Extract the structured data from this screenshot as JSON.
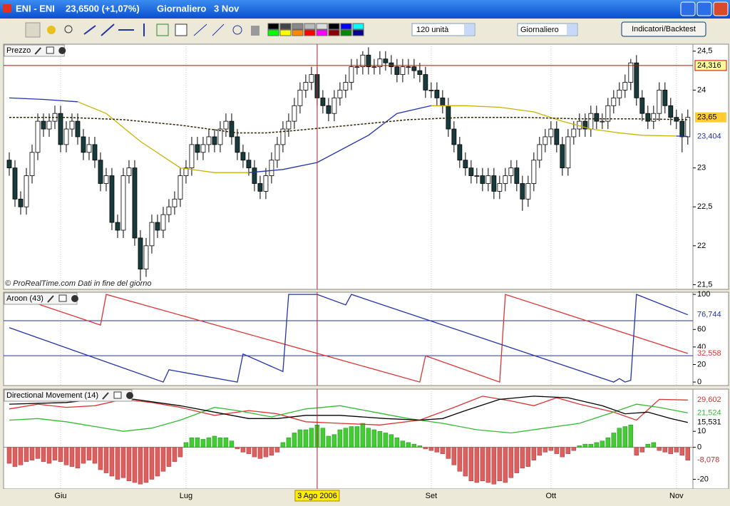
{
  "window": {
    "instrument": "ENI - ENI",
    "quote": "23,6500 (+1,07%)",
    "period": "Giornaliero",
    "date": "3 Nov"
  },
  "toolbar": {
    "units": "120 unità",
    "timeframe": "Giornaliero",
    "button": "Indicatori/Backtest"
  },
  "time_axis": {
    "xlim": [
      -1,
      119.9
    ],
    "xticks": [
      {
        "value": 9,
        "label": "Giu"
      },
      {
        "value": 31,
        "label": "Lug"
      },
      {
        "value": 74,
        "label": "Set"
      },
      {
        "value": 95,
        "label": "Ott"
      },
      {
        "value": 117,
        "label": "Nov"
      }
    ],
    "crosshair": {
      "value": 54,
      "label": "3 Ago 2006"
    }
  },
  "chart_data": [
    {
      "type": "candlestick",
      "title": "Prezzo",
      "watermark": "© ProRealTime.com  Dati in fine del giorno",
      "ylim": [
        21.44,
        24.59
      ],
      "yticks": [
        {
          "value": 24.5,
          "label": "24,5"
        },
        24,
        23,
        {
          "value": 22.5,
          "label": "22,5"
        },
        22,
        {
          "value": 21.5,
          "label": "21,5"
        }
      ],
      "up_color": "#ffffff",
      "down_color": "#183c3c",
      "open": [
        23.1,
        23.0,
        22.6,
        22.5,
        22.9,
        23.2,
        23.6,
        23.5,
        23.6,
        23.7,
        23.3,
        23.5,
        23.6,
        23.4,
        23.2,
        23.3,
        23.1,
        22.8,
        22.9,
        22.3,
        22.2,
        22.9,
        23.0,
        22.1,
        21.7,
        22.0,
        22.3,
        22.2,
        22.4,
        22.5,
        22.6,
        22.9,
        23.0,
        23.3,
        23.2,
        23.3,
        23.4,
        23.3,
        23.5,
        23.6,
        23.4,
        23.2,
        23.1,
        23.0,
        22.8,
        22.7,
        22.9,
        23.1,
        23.3,
        23.5,
        23.6,
        23.8,
        24.0,
        24.1,
        24.2,
        23.9,
        23.8,
        23.7,
        23.9,
        24.0,
        24.1,
        24.3,
        24.3,
        24.45,
        24.3,
        24.3,
        24.4,
        24.35,
        24.3,
        24.2,
        24.3,
        24.3,
        24.25,
        24.2,
        24.0,
        24.0,
        23.9,
        23.8,
        23.5,
        23.3,
        23.1,
        23.0,
        22.9,
        22.9,
        22.8,
        22.9,
        22.7,
        22.8,
        22.9,
        23.0,
        22.8,
        22.6,
        22.8,
        23.1,
        23.3,
        23.4,
        23.5,
        23.3,
        23.0,
        23.4,
        23.5,
        23.6,
        23.5,
        23.7,
        23.6,
        23.6,
        23.8,
        23.9,
        24.0,
        24.1,
        24.35,
        23.9,
        23.7,
        23.6,
        23.7,
        24.0,
        23.8,
        23.65,
        23.6,
        23.4
      ],
      "high": [
        23.2,
        23.1,
        22.7,
        23.0,
        23.3,
        23.7,
        23.7,
        23.7,
        23.8,
        23.8,
        23.6,
        23.7,
        23.7,
        23.5,
        23.4,
        23.4,
        23.2,
        23.0,
        23.0,
        22.4,
        23.0,
        23.1,
        23.1,
        22.2,
        22.1,
        22.4,
        22.4,
        22.5,
        22.6,
        22.7,
        23.0,
        23.1,
        23.4,
        23.4,
        23.4,
        23.5,
        23.5,
        23.6,
        23.7,
        23.7,
        23.5,
        23.3,
        23.2,
        23.1,
        22.9,
        23.0,
        23.2,
        23.4,
        23.6,
        23.7,
        23.9,
        24.1,
        24.2,
        24.3,
        24.3,
        24.0,
        23.9,
        24.0,
        24.1,
        24.2,
        24.4,
        24.4,
        24.5,
        24.55,
        24.4,
        24.5,
        24.5,
        24.45,
        24.4,
        24.4,
        24.4,
        24.4,
        24.35,
        24.3,
        24.1,
        24.1,
        24.0,
        23.9,
        23.6,
        23.4,
        23.2,
        23.1,
        23.0,
        23.0,
        23.0,
        23.0,
        22.9,
        23.0,
        23.1,
        23.1,
        22.9,
        22.9,
        23.2,
        23.4,
        23.5,
        23.6,
        23.6,
        23.4,
        23.5,
        23.6,
        23.7,
        23.7,
        23.8,
        23.8,
        23.7,
        23.9,
        24.0,
        24.1,
        24.2,
        24.4,
        24.45,
        24.0,
        23.8,
        23.8,
        24.1,
        24.1,
        23.9,
        23.75,
        23.7,
        23.75
      ],
      "low": [
        22.9,
        22.5,
        22.4,
        22.4,
        22.8,
        23.1,
        23.4,
        23.4,
        23.5,
        23.2,
        23.2,
        23.4,
        23.3,
        23.1,
        23.1,
        23.0,
        22.7,
        22.7,
        22.2,
        22.1,
        22.1,
        22.8,
        22.0,
        21.55,
        21.6,
        21.9,
        22.1,
        22.1,
        22.3,
        22.4,
        22.5,
        22.8,
        22.9,
        23.1,
        23.1,
        23.2,
        23.2,
        23.2,
        23.4,
        23.3,
        23.1,
        23.0,
        22.9,
        22.7,
        22.6,
        22.6,
        22.8,
        23.0,
        23.2,
        23.4,
        23.5,
        23.7,
        23.9,
        24.0,
        23.8,
        23.7,
        23.6,
        23.6,
        23.8,
        23.9,
        24.0,
        24.2,
        24.2,
        24.2,
        24.2,
        24.2,
        24.25,
        24.2,
        24.1,
        24.1,
        24.2,
        24.15,
        24.1,
        23.9,
        23.9,
        23.8,
        23.7,
        23.4,
        23.2,
        23.0,
        22.9,
        22.8,
        22.8,
        22.7,
        22.7,
        22.6,
        22.6,
        22.7,
        22.8,
        22.7,
        22.45,
        22.5,
        22.7,
        23.0,
        23.2,
        23.3,
        23.2,
        22.9,
        22.9,
        23.3,
        23.4,
        23.4,
        23.4,
        23.5,
        23.5,
        23.5,
        23.7,
        23.8,
        23.9,
        24.0,
        23.8,
        23.6,
        23.5,
        23.5,
        23.6,
        23.7,
        23.55,
        23.5,
        23.2,
        23.3
      ],
      "close": [
        23.0,
        22.6,
        22.5,
        22.9,
        23.2,
        23.6,
        23.5,
        23.6,
        23.7,
        23.3,
        23.5,
        23.6,
        23.4,
        23.2,
        23.3,
        23.1,
        22.8,
        22.9,
        22.3,
        22.2,
        22.9,
        23.0,
        22.1,
        21.7,
        22.0,
        22.3,
        22.2,
        22.4,
        22.5,
        22.6,
        22.9,
        23.0,
        23.3,
        23.2,
        23.3,
        23.4,
        23.3,
        23.5,
        23.6,
        23.4,
        23.2,
        23.1,
        23.0,
        22.8,
        22.7,
        22.9,
        23.1,
        23.3,
        23.5,
        23.6,
        23.8,
        24.0,
        24.1,
        24.2,
        23.9,
        23.8,
        23.7,
        23.9,
        24.0,
        24.1,
        24.3,
        24.3,
        24.45,
        24.3,
        24.3,
        24.4,
        24.35,
        24.3,
        24.2,
        24.3,
        24.3,
        24.25,
        24.2,
        24.0,
        24.0,
        23.9,
        23.8,
        23.5,
        23.3,
        23.1,
        23.0,
        22.9,
        22.9,
        22.8,
        22.9,
        22.7,
        22.8,
        22.9,
        23.0,
        22.8,
        22.6,
        22.8,
        23.1,
        23.3,
        23.4,
        23.5,
        23.3,
        23.0,
        23.4,
        23.5,
        23.6,
        23.5,
        23.7,
        23.6,
        23.6,
        23.8,
        23.9,
        24.0,
        24.1,
        24.35,
        23.9,
        23.7,
        23.6,
        23.7,
        24.0,
        23.8,
        23.65,
        23.6,
        23.4,
        23.65
      ],
      "close_label": "23,65",
      "hline": {
        "value": 24.316,
        "label": "24,316",
        "color": "#cc0000"
      },
      "series": [
        {
          "color": "#2233aa",
          "x": [
            0,
            6,
            12
          ],
          "values": [
            23.9,
            23.88,
            23.85
          ]
        },
        {
          "color": "#c8b400",
          "x": [
            12,
            17,
            23,
            30,
            36,
            42
          ],
          "values": [
            23.85,
            23.7,
            23.34,
            23.0,
            22.94,
            22.94
          ]
        },
        {
          "color": "#2233aa",
          "x": [
            42,
            48,
            54,
            63,
            68,
            74
          ],
          "values": [
            22.94,
            22.98,
            23.07,
            23.42,
            23.7,
            23.8
          ]
        },
        {
          "color": "#c8b400",
          "x": [
            74,
            80,
            86,
            92,
            97,
            102,
            107,
            111,
            117
          ],
          "values": [
            23.8,
            23.8,
            23.78,
            23.72,
            23.6,
            23.5,
            23.45,
            23.42,
            23.41
          ]
        },
        {
          "color": "#2233aa",
          "x": [
            117,
            119
          ],
          "values": [
            23.41,
            23.404
          ],
          "last_label": "23,404"
        },
        {
          "color": "#332200",
          "dashed": true,
          "x": [
            0,
            10,
            20,
            30,
            40,
            45,
            50,
            60,
            70,
            80,
            90,
            100,
            110,
            119
          ],
          "values": [
            23.65,
            23.65,
            23.62,
            23.55,
            23.45,
            23.45,
            23.48,
            23.55,
            23.62,
            23.65,
            23.65,
            23.63,
            23.63,
            23.62
          ]
        }
      ]
    },
    {
      "type": "line",
      "title": "Aroon (43)",
      "ylim": [
        -4,
        102.5
      ],
      "yticks": [
        0,
        20,
        40,
        60,
        100
      ],
      "levels": [
        70,
        30
      ],
      "level_color": "#2233aa",
      "series": [
        {
          "color": "#dd3333",
          "x": [
            0,
            16,
            17,
            72,
            73,
            86,
            87,
            119
          ],
          "values": [
            100,
            65,
            100,
            0,
            30,
            0,
            100,
            32.558
          ],
          "last_label": "32,558"
        },
        {
          "color": "#2233aa",
          "x": [
            0,
            27,
            28,
            40,
            41,
            48,
            49,
            54,
            59,
            60,
            106,
            107,
            108,
            109,
            110,
            119
          ],
          "values": [
            62,
            0,
            14,
            0,
            32,
            12,
            100,
            100,
            88,
            100,
            0,
            4,
            0,
            2,
            100,
            76.744
          ],
          "last_label": "76,744"
        }
      ]
    },
    {
      "type": "combo",
      "title": "Directional Movement (14)",
      "ylim": [
        -26,
        36.4
      ],
      "yticks": [
        -20,
        0,
        10
      ],
      "bars": {
        "pos_color": "#44cc33",
        "neg_color": "#dd6060",
        "values": [
          -10,
          -12,
          -11,
          -9,
          -8,
          -7,
          -9,
          -10,
          -8,
          -9,
          -11,
          -12,
          -13,
          -10,
          -8,
          -10,
          -14,
          -16,
          -18,
          -20,
          -19,
          -21,
          -22,
          -23,
          -22,
          -20,
          -18,
          -15,
          -12,
          -9,
          -6,
          3,
          6,
          6,
          5,
          6,
          7,
          6,
          6,
          4,
          -1,
          -3,
          -4,
          -6,
          -7,
          -6,
          -5,
          -3,
          3,
          6,
          9,
          11,
          11,
          12,
          14,
          12,
          7,
          8,
          11,
          12,
          13,
          13,
          15,
          12,
          11,
          10,
          9,
          8,
          6,
          4,
          3,
          2,
          1,
          -1,
          -2,
          -3,
          -4,
          -7,
          -11,
          -15,
          -18,
          -21,
          -22,
          -21,
          -22,
          -23,
          -21,
          -22,
          -19,
          -16,
          -13,
          -12,
          -8,
          -5,
          -3,
          -2,
          -4,
          -6,
          -4,
          -2,
          1,
          2,
          2,
          3,
          4,
          6,
          9,
          12,
          13,
          14,
          -5,
          -3,
          2,
          3,
          -2,
          -3,
          -4,
          -3,
          -5,
          -8.078
        ],
        "last_label": "-8,078"
      },
      "series": [
        {
          "color": "#dd3333",
          "x": [
            0,
            5,
            10,
            15,
            20,
            25,
            30,
            36,
            42,
            47,
            52,
            58,
            65,
            72,
            78,
            83,
            88,
            92,
            96,
            100,
            106,
            110,
            114,
            119
          ],
          "values": [
            24,
            27,
            25,
            26,
            30,
            28,
            25,
            20,
            23,
            21,
            16,
            15,
            14,
            17,
            25,
            32,
            29,
            26,
            31,
            27,
            22,
            17,
            30,
            29.602
          ],
          "last_label": "29,602"
        },
        {
          "color": "#33bb33",
          "x": [
            0,
            5,
            10,
            15,
            20,
            25,
            30,
            36,
            40,
            46,
            52,
            58,
            64,
            70,
            76,
            82,
            88,
            94,
            100,
            106,
            110,
            114,
            119
          ],
          "values": [
            17,
            18,
            16,
            13,
            10,
            12,
            17,
            25,
            23,
            19,
            24,
            26,
            22,
            18,
            15,
            11,
            9,
            12,
            15,
            22,
            27,
            25,
            21.524
          ],
          "last_label": "21,524"
        },
        {
          "color": "#000000",
          "x": [
            0,
            10,
            18,
            22,
            30,
            36,
            42,
            47,
            52,
            58,
            66,
            72,
            76,
            80,
            86,
            92,
            98,
            104,
            108,
            112,
            116,
            119
          ],
          "values": [
            27,
            28,
            31,
            30,
            26,
            22,
            18,
            18,
            20,
            20,
            18,
            17,
            18,
            23,
            30,
            32,
            31,
            26,
            21,
            22,
            18,
            15.531
          ],
          "last_label": "15,531"
        }
      ]
    }
  ]
}
